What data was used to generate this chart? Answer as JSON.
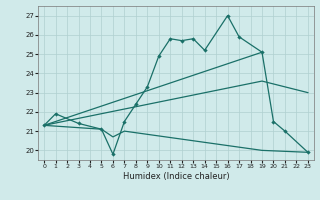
{
  "xlabel": "Humidex (Indice chaleur)",
  "xlim": [
    -0.5,
    23.5
  ],
  "ylim": [
    19.5,
    27.5
  ],
  "yticks": [
    20,
    21,
    22,
    23,
    24,
    25,
    26,
    27
  ],
  "xticks": [
    0,
    1,
    2,
    3,
    4,
    5,
    6,
    7,
    8,
    9,
    10,
    11,
    12,
    13,
    14,
    15,
    16,
    17,
    18,
    19,
    20,
    21,
    22,
    23
  ],
  "bg_color": "#d0eaea",
  "line_color": "#1a7068",
  "grid_color": "#b0d0d0",
  "line_main": {
    "x": [
      0,
      1,
      3,
      5,
      6,
      7,
      8,
      9,
      10,
      11,
      12,
      13,
      14,
      16,
      17,
      19,
      20,
      21,
      23
    ],
    "y": [
      21.3,
      21.9,
      21.4,
      21.1,
      19.8,
      21.5,
      22.4,
      23.3,
      24.9,
      25.8,
      25.7,
      25.8,
      25.2,
      27.0,
      25.9,
      25.1,
      21.5,
      21.0,
      19.9
    ]
  },
  "line_trend1": {
    "x": [
      0,
      19
    ],
    "y": [
      21.3,
      25.1
    ]
  },
  "line_trend2": {
    "x": [
      0,
      19,
      23
    ],
    "y": [
      21.3,
      23.6,
      23.0
    ]
  },
  "line_trend3": {
    "x": [
      0,
      5,
      6,
      7,
      19,
      23
    ],
    "y": [
      21.3,
      21.1,
      20.7,
      21.0,
      20.0,
      19.9
    ]
  }
}
